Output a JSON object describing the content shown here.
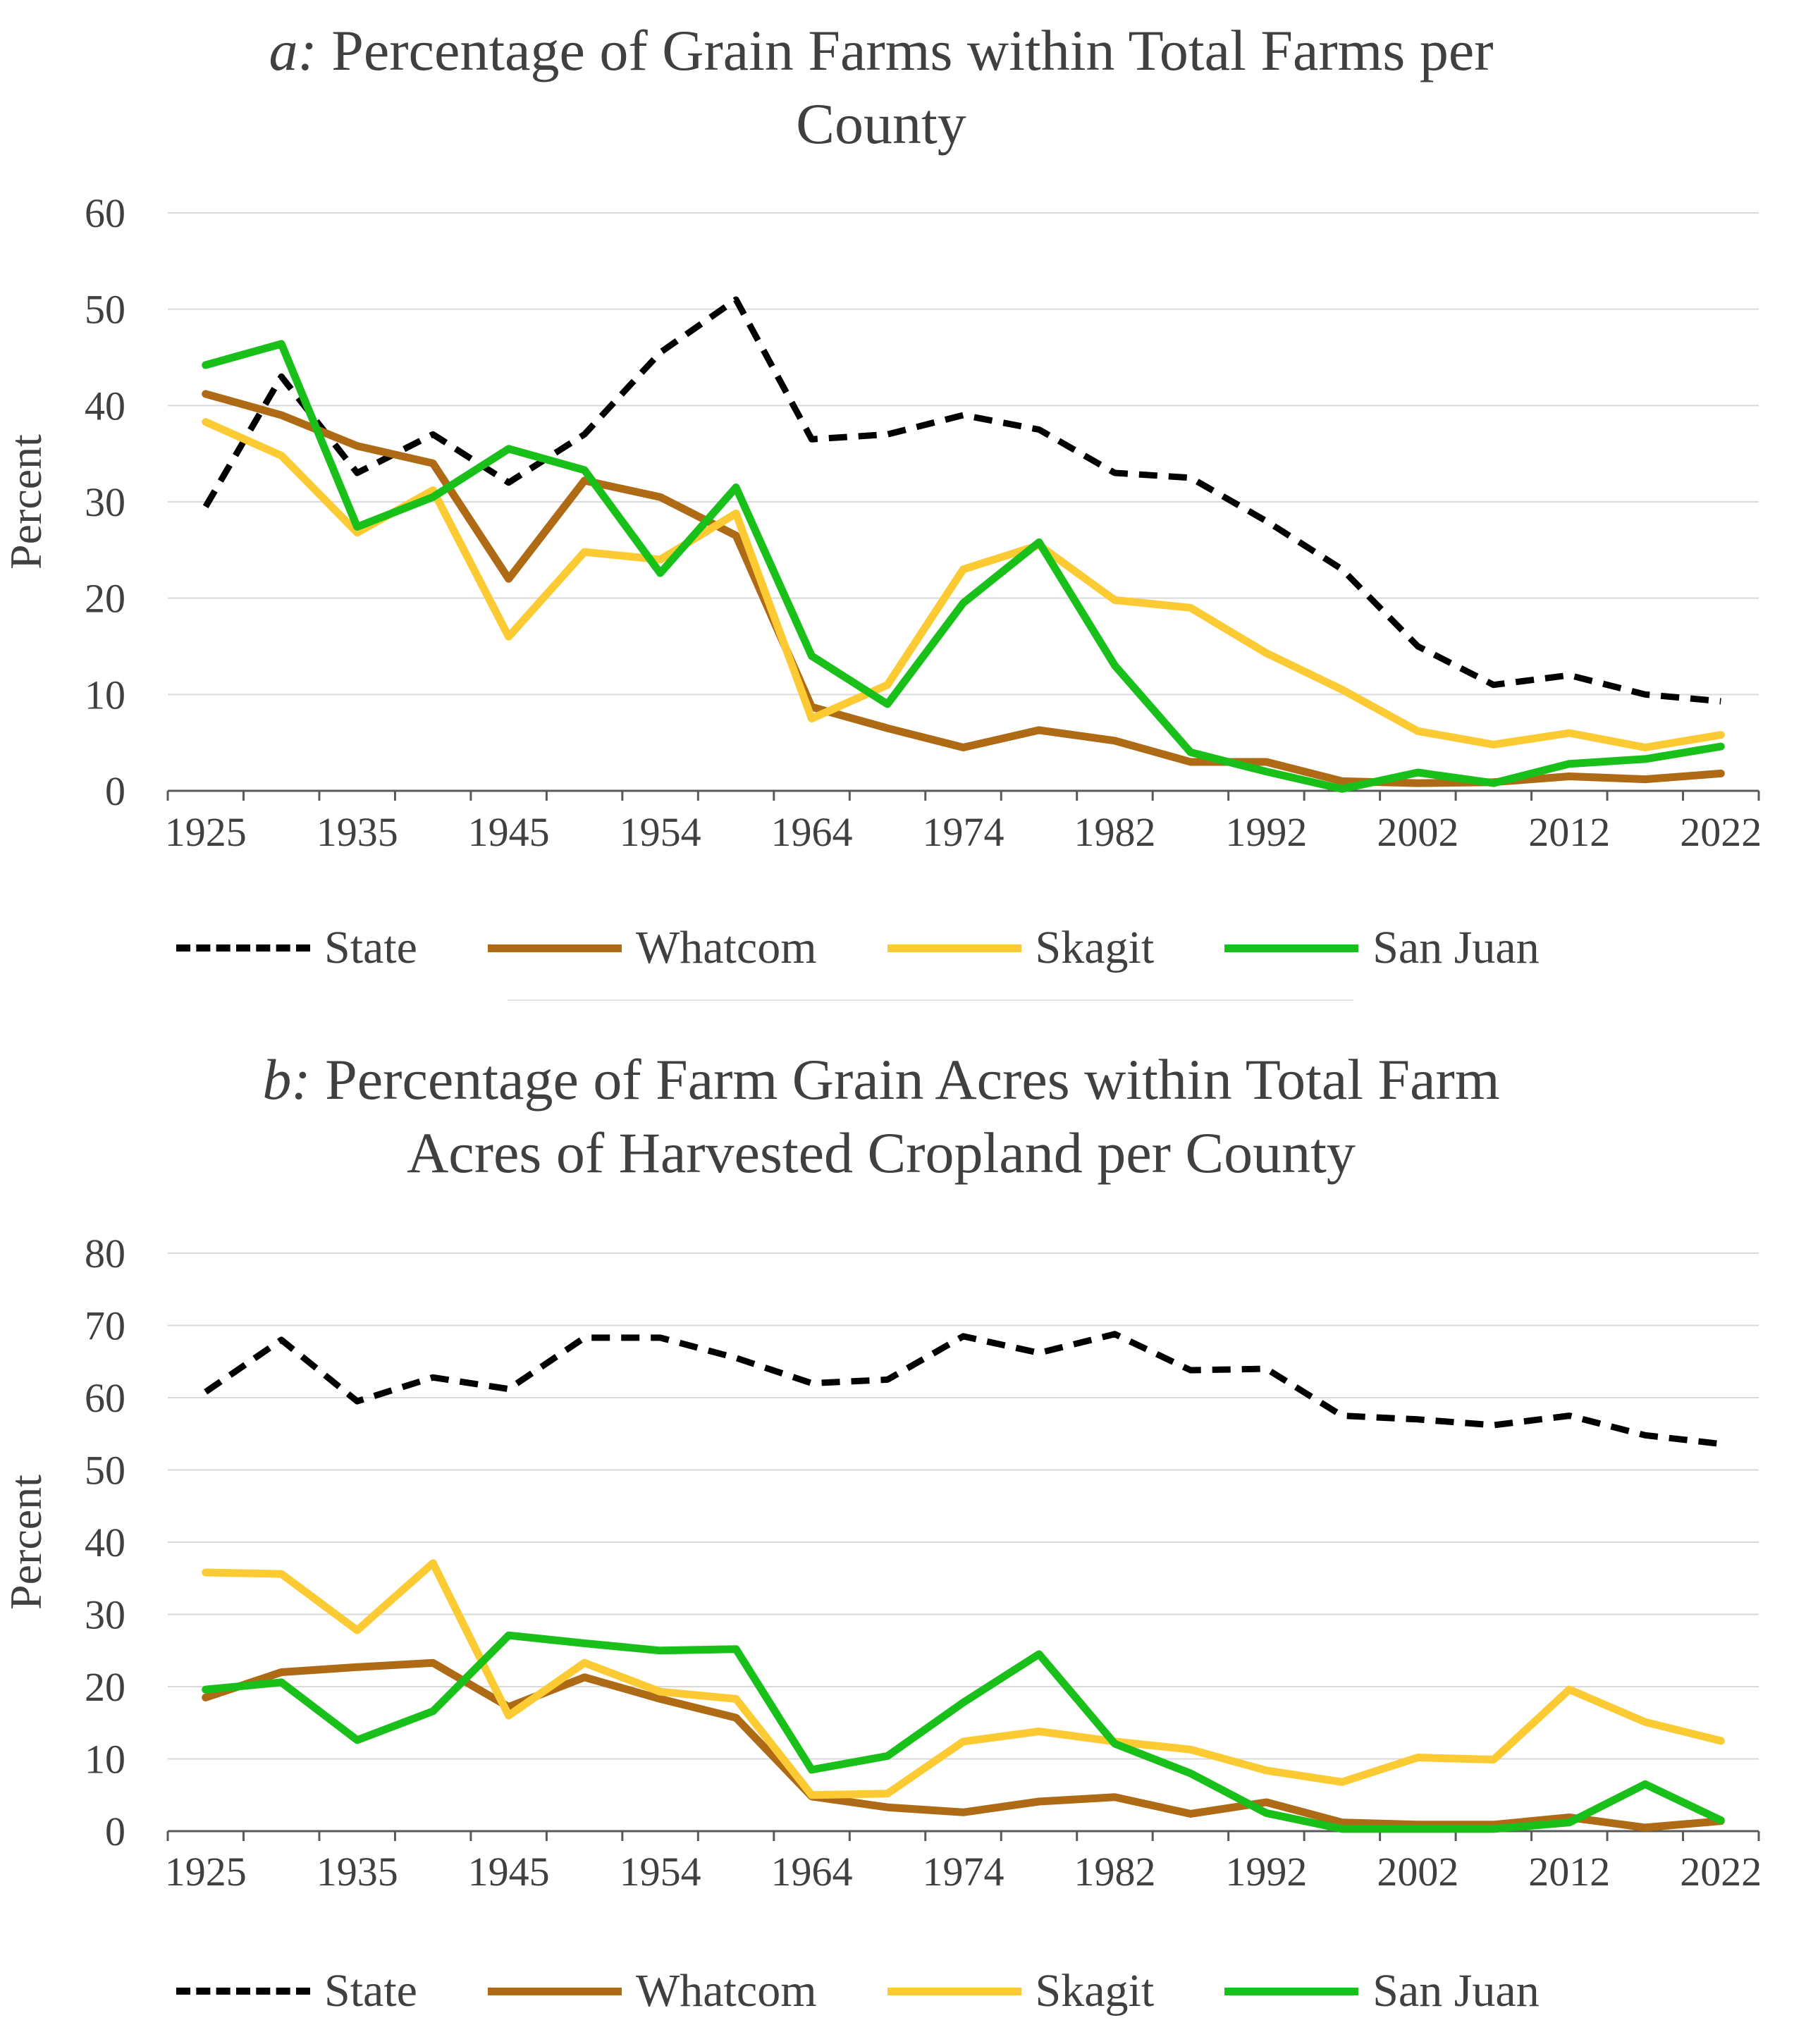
{
  "colors": {
    "State": "#000000",
    "Whatcom": "#AE6A14",
    "Skagit": "#FCCB33",
    "San Juan": "#1AC01A",
    "grid": "#d9d9d9",
    "axis": "#595959",
    "text": "#404040"
  },
  "chart_data": [
    {
      "id": "a",
      "type": "line",
      "title_prefix": "a:",
      "title_line1": "Percentage of Grain Farms within Total Farms per",
      "title_line2": "County",
      "ylabel": "Percent",
      "xlabel": "",
      "ylim": [
        0,
        60
      ],
      "yticks": [
        0,
        10,
        20,
        30,
        40,
        50,
        60
      ],
      "grid": true,
      "legend_position": "bottom",
      "categories": [
        "1925",
        "1930",
        "1935",
        "1940",
        "1945",
        "1950",
        "1954",
        "1959",
        "1964",
        "1969",
        "1974",
        "1978",
        "1982",
        "1987",
        "1992",
        "1997",
        "2002",
        "2007",
        "2012",
        "2017",
        "2022"
      ],
      "tick_labels": [
        "1925",
        "1935",
        "1945",
        "1954",
        "1964",
        "1974",
        "1982",
        "1992",
        "2002",
        "2012",
        "2022"
      ],
      "series": [
        {
          "name": "State",
          "dash": true,
          "values": [
            29.5,
            43,
            33,
            37,
            32,
            37,
            45.5,
            51,
            36.5,
            37,
            39,
            37.5,
            33,
            32.5,
            28,
            23,
            15,
            11,
            12,
            10,
            9.3
          ]
        },
        {
          "name": "Whatcom",
          "dash": false,
          "values": [
            41.2,
            39,
            35.8,
            34,
            22,
            32.2,
            30.5,
            26.5,
            8.7,
            6.5,
            4.5,
            6.3,
            5.2,
            3,
            3,
            1,
            0.8,
            0.9,
            1.5,
            1.2,
            1.8
          ]
        },
        {
          "name": "Skagit",
          "dash": false,
          "values": [
            38.3,
            34.8,
            26.8,
            31.2,
            16,
            24.8,
            24,
            28.8,
            7.5,
            11,
            23,
            25.5,
            19.8,
            19,
            14.3,
            10.5,
            6.2,
            4.8,
            6,
            4.5,
            5.8
          ]
        },
        {
          "name": "San Juan",
          "dash": false,
          "values": [
            44.2,
            46.4,
            27.4,
            30.5,
            35.5,
            33.3,
            22.6,
            31.5,
            14,
            9,
            19.5,
            25.8,
            13,
            4,
            2,
            0.2,
            1.9,
            0.8,
            2.8,
            3.3,
            4.6
          ]
        }
      ]
    },
    {
      "id": "b",
      "type": "line",
      "title_prefix": "b:",
      "title_line1": "Percentage of Farm Grain Acres within Total Farm",
      "title_line2": "Acres of Harvested Cropland per County",
      "ylabel": "Percent",
      "xlabel": "",
      "ylim": [
        0,
        80
      ],
      "yticks": [
        0,
        10,
        20,
        30,
        40,
        50,
        60,
        70,
        80
      ],
      "grid": true,
      "legend_position": "bottom",
      "categories": [
        "1925",
        "1930",
        "1935",
        "1940",
        "1945",
        "1950",
        "1954",
        "1959",
        "1964",
        "1969",
        "1974",
        "1978",
        "1982",
        "1987",
        "1992",
        "1997",
        "2002",
        "2007",
        "2012",
        "2017",
        "2022"
      ],
      "tick_labels": [
        "1925",
        "1935",
        "1945",
        "1954",
        "1964",
        "1974",
        "1982",
        "1992",
        "2002",
        "2012",
        "2022"
      ],
      "series": [
        {
          "name": "State",
          "dash": true,
          "values": [
            60.8,
            68,
            59.5,
            62.8,
            61.2,
            68.3,
            68.3,
            65.5,
            62,
            62.5,
            68.5,
            66.2,
            68.8,
            63.8,
            64,
            57.5,
            57,
            56.2,
            57.5,
            54.8,
            53.6
          ]
        },
        {
          "name": "Whatcom",
          "dash": false,
          "values": [
            18.5,
            22,
            22.7,
            23.3,
            17.2,
            21.3,
            18.3,
            15.7,
            4.8,
            3.3,
            2.6,
            4.1,
            4.7,
            2.4,
            4,
            1.2,
            0.9,
            0.9,
            1.9,
            0.5,
            1.4
          ]
        },
        {
          "name": "Skagit",
          "dash": false,
          "values": [
            35.8,
            35.6,
            27.8,
            37.1,
            16,
            23.3,
            19.3,
            18.3,
            5,
            5.2,
            12.4,
            13.8,
            12.4,
            11.3,
            8.4,
            6.8,
            10.2,
            9.9,
            19.6,
            15.1,
            12.5
          ]
        },
        {
          "name": "San Juan",
          "dash": false,
          "values": [
            19.6,
            20.6,
            12.6,
            16.6,
            27.1,
            26,
            25,
            25.2,
            8.5,
            10.4,
            17.8,
            24.5,
            12.1,
            8,
            2.5,
            0.3,
            0.3,
            0.3,
            1.2,
            6.5,
            1.5
          ]
        }
      ]
    }
  ]
}
